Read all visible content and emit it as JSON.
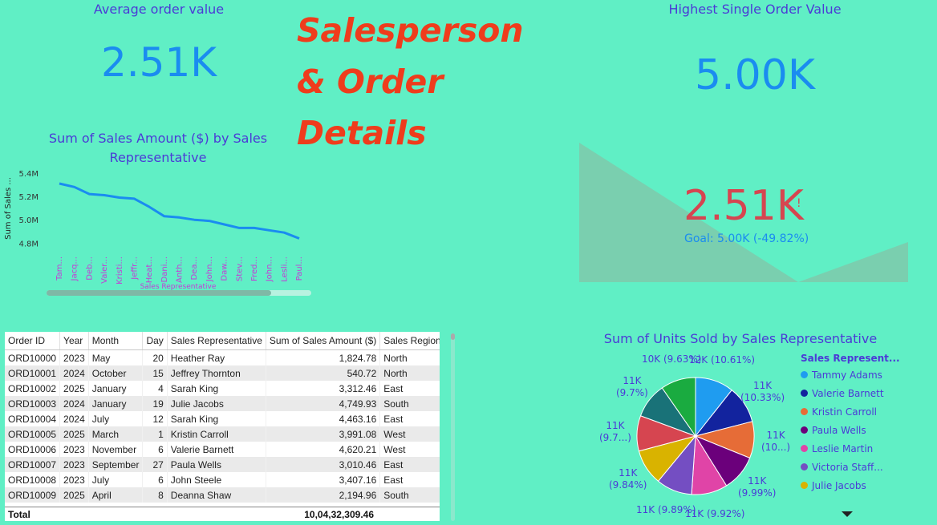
{
  "kpi_avg": {
    "title": "Average order value",
    "value": "2.51K"
  },
  "kpi_high": {
    "title": "Highest Single Order Value",
    "value": "5.00K"
  },
  "page_title": {
    "line1": "Salesperson",
    "line2": "& Order",
    "line3": "Details"
  },
  "gauge": {
    "value": "2.51K",
    "marker": "!",
    "goal": "Goal: 5.00K (-49.82%)",
    "fill_ratio": 0.502
  },
  "line_chart": {
    "title": "Sum of Sales Amount ($) by Sales Representative",
    "xlabel": "Sales Representative",
    "ylabel": "Sum of Sales ..."
  },
  "chart_data": [
    {
      "type": "line",
      "title": "Sum of Sales Amount ($) by Sales Representative",
      "xlabel": "Sales Representative",
      "ylabel": "Sum of Sales ...",
      "x": [
        "Tam...",
        "Jacq...",
        "Deb...",
        "Valer...",
        "Kristi...",
        "Jeffr...",
        "Heat...",
        "Dani...",
        "Anth...",
        "Dea...",
        "John...",
        "Daw...",
        "Stev...",
        "Fred...",
        "John...",
        "Lesli...",
        "Paul..."
      ],
      "y_ticks": [
        "5.4M",
        "5.2M",
        "5.0M",
        "4.8M"
      ],
      "ylim": [
        4.72,
        5.44
      ],
      "series": [
        {
          "values": [
            5.31,
            5.28,
            5.22,
            5.21,
            5.19,
            5.18,
            5.11,
            5.03,
            5.02,
            5.0,
            4.99,
            4.96,
            4.93,
            4.93,
            4.91,
            4.89,
            4.84
          ]
        }
      ]
    },
    {
      "type": "pie",
      "title": "Sum of Units Sold by Sales Representative",
      "legend_title": "Sales Represent...",
      "slices": [
        {
          "name": "Tammy Adams",
          "label": "12K (10.61%)",
          "pct": 10.61,
          "color": "#1f9cf0"
        },
        {
          "name": "Valerie Barnett",
          "label": "11K (10.33%)",
          "pct": 10.33,
          "color": "#12239e"
        },
        {
          "name": "Kristin Carroll",
          "label": "11K (10...)",
          "pct": 10.1,
          "color": "#e66c37"
        },
        {
          "name": "Paula Wells",
          "label": "11K (9.99%)",
          "pct": 9.99,
          "color": "#6b007b"
        },
        {
          "name": "Leslie Martin",
          "label": "11K (9.92%)",
          "pct": 9.92,
          "color": "#e044a7"
        },
        {
          "name": "Victoria Staff...",
          "label": "11K (9.89%)",
          "pct": 9.89,
          "color": "#744ec2"
        },
        {
          "name": "Julie Jacobs",
          "label": "11K (9.84%)",
          "pct": 9.84,
          "color": "#d9b300"
        },
        {
          "name": "",
          "label": "11K (9.7...)",
          "pct": 9.74,
          "color": "#d64550"
        },
        {
          "name": "",
          "label": "11K (9.7%)",
          "pct": 9.7,
          "color": "#197278"
        },
        {
          "name": "",
          "label": "10K (9.63%)",
          "pct": 9.63,
          "color": "#1aab40"
        }
      ]
    }
  ],
  "table": {
    "headers": [
      "Order ID",
      "Year",
      "Month",
      "Day",
      "Sales Representative",
      "Sum of Sales Amount ($)",
      "Sales Region"
    ],
    "rows": [
      [
        "ORD10000",
        "2023",
        "May",
        "20",
        "Heather Ray",
        "1,824.78",
        "North"
      ],
      [
        "ORD10001",
        "2024",
        "October",
        "15",
        "Jeffrey Thornton",
        "540.72",
        "North"
      ],
      [
        "ORD10002",
        "2025",
        "January",
        "4",
        "Sarah King",
        "3,312.46",
        "East"
      ],
      [
        "ORD10003",
        "2024",
        "January",
        "19",
        "Julie Jacobs",
        "4,749.93",
        "South"
      ],
      [
        "ORD10004",
        "2024",
        "July",
        "12",
        "Sarah King",
        "4,463.16",
        "East"
      ],
      [
        "ORD10005",
        "2025",
        "March",
        "1",
        "Kristin Carroll",
        "3,991.08",
        "West"
      ],
      [
        "ORD10006",
        "2023",
        "November",
        "6",
        "Valerie Barnett",
        "4,620.21",
        "West"
      ],
      [
        "ORD10007",
        "2023",
        "September",
        "27",
        "Paula Wells",
        "3,010.46",
        "East"
      ],
      [
        "ORD10008",
        "2023",
        "July",
        "6",
        "John Steele",
        "3,407.16",
        "East"
      ],
      [
        "ORD10009",
        "2025",
        "April",
        "8",
        "Deanna Shaw",
        "2,194.96",
        "South"
      ]
    ],
    "total_label": "Total",
    "total_value": "10,04,32,309.46"
  },
  "colors": {
    "background": "#60efc5",
    "accent": "#1a8cf0",
    "title": "#ef3c1c",
    "heading": "#4b3bd6",
    "gauge_value": "#d64550"
  }
}
